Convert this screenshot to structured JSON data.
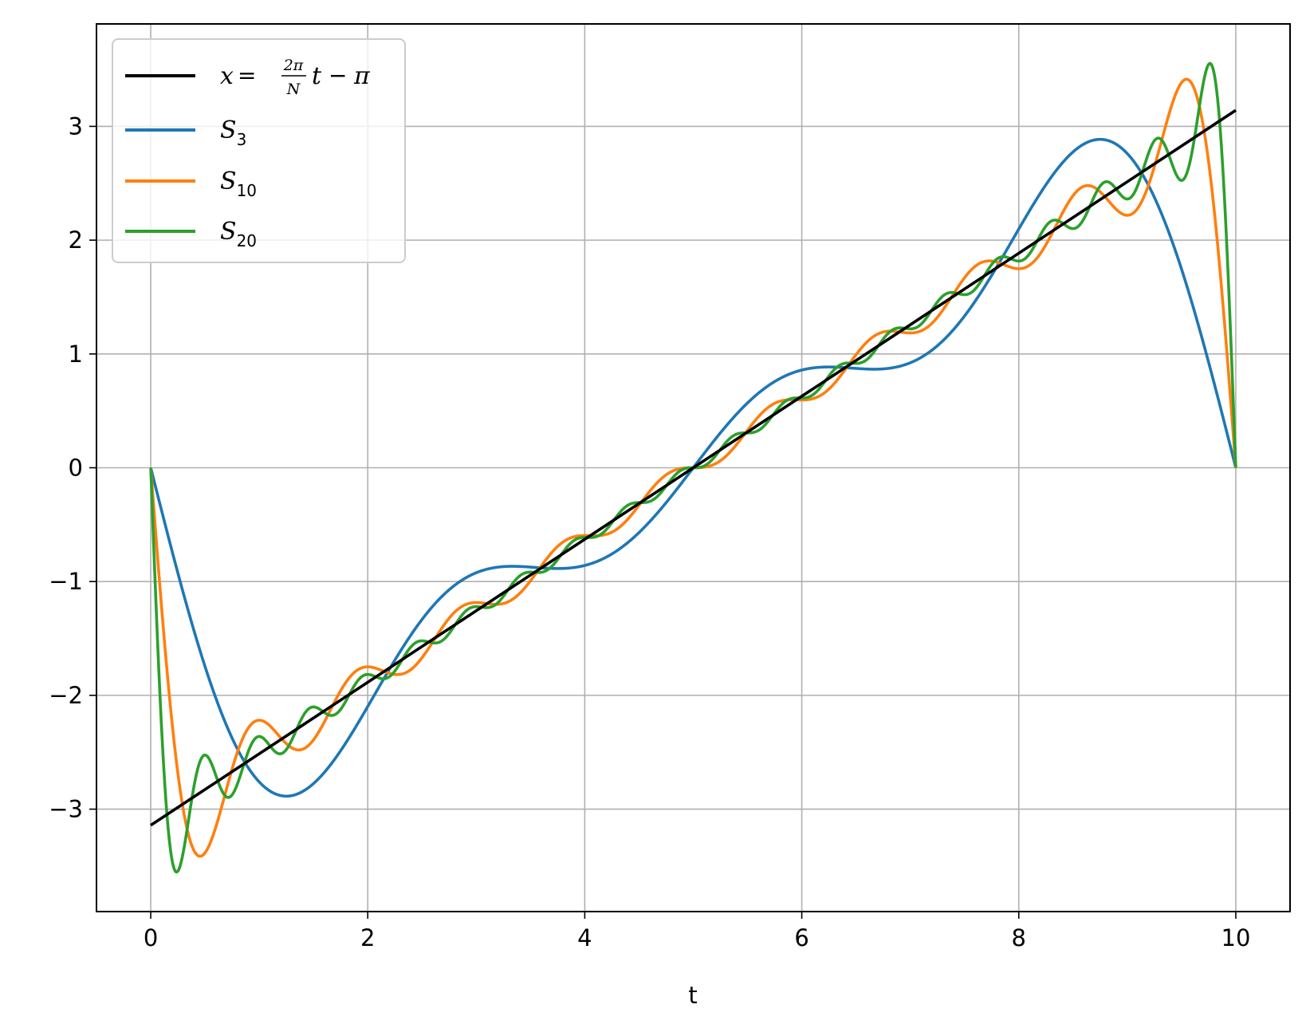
{
  "chart_data": {
    "type": "line",
    "xlabel": "t",
    "ylabel": "",
    "xlim": [
      -0.5,
      10.5
    ],
    "ylim": [
      -3.9,
      3.9
    ],
    "x_ticks": [
      0,
      2,
      4,
      6,
      8,
      10
    ],
    "x_tick_labels": [
      "0",
      "2",
      "4",
      "6",
      "8",
      "10"
    ],
    "y_ticks": [
      -3,
      -2,
      -1,
      0,
      1,
      2,
      3
    ],
    "y_tick_labels": [
      "−3",
      "−2",
      "−1",
      "0",
      "1",
      "2",
      "3"
    ],
    "grid": true,
    "legend_position": "top-left",
    "N": 10,
    "t_range": [
      0,
      10
    ],
    "series": [
      {
        "name": "x = 2π/N t − π",
        "kind": "target",
        "color": "#000000",
        "x": [
          0,
          10
        ],
        "y": [
          -3.1416,
          3.1416
        ]
      },
      {
        "name": "S3",
        "harmonics": 3,
        "color": "#1f77b4",
        "x": [
          0,
          1.25,
          3.3,
          5,
          6.7,
          8.75,
          10
        ],
        "y": [
          0,
          -2.88,
          -0.86,
          0,
          0.86,
          2.88,
          0
        ]
      },
      {
        "name": "S10",
        "harmonics": 10,
        "color": "#ff7f0e",
        "x": [
          0,
          0.45,
          1,
          5,
          9,
          9.55,
          10
        ],
        "y": [
          0,
          -3.42,
          -2.22,
          0,
          2.22,
          3.42,
          0
        ]
      },
      {
        "name": "S20",
        "harmonics": 20,
        "color": "#2ca02c",
        "x": [
          0,
          0.24,
          0.5,
          5,
          9.5,
          9.76,
          10
        ],
        "y": [
          0,
          -3.55,
          -2.53,
          0,
          2.53,
          3.55,
          0
        ]
      }
    ]
  },
  "legend": {
    "target_label": {
      "lhs": "x",
      "eq": "=",
      "num": "2π",
      "den": "N",
      "var": "t",
      "minus": "−",
      "rhs": "π"
    },
    "items": [
      {
        "base": "S",
        "sub": "3"
      },
      {
        "base": "S",
        "sub": "10"
      },
      {
        "base": "S",
        "sub": "20"
      }
    ]
  }
}
